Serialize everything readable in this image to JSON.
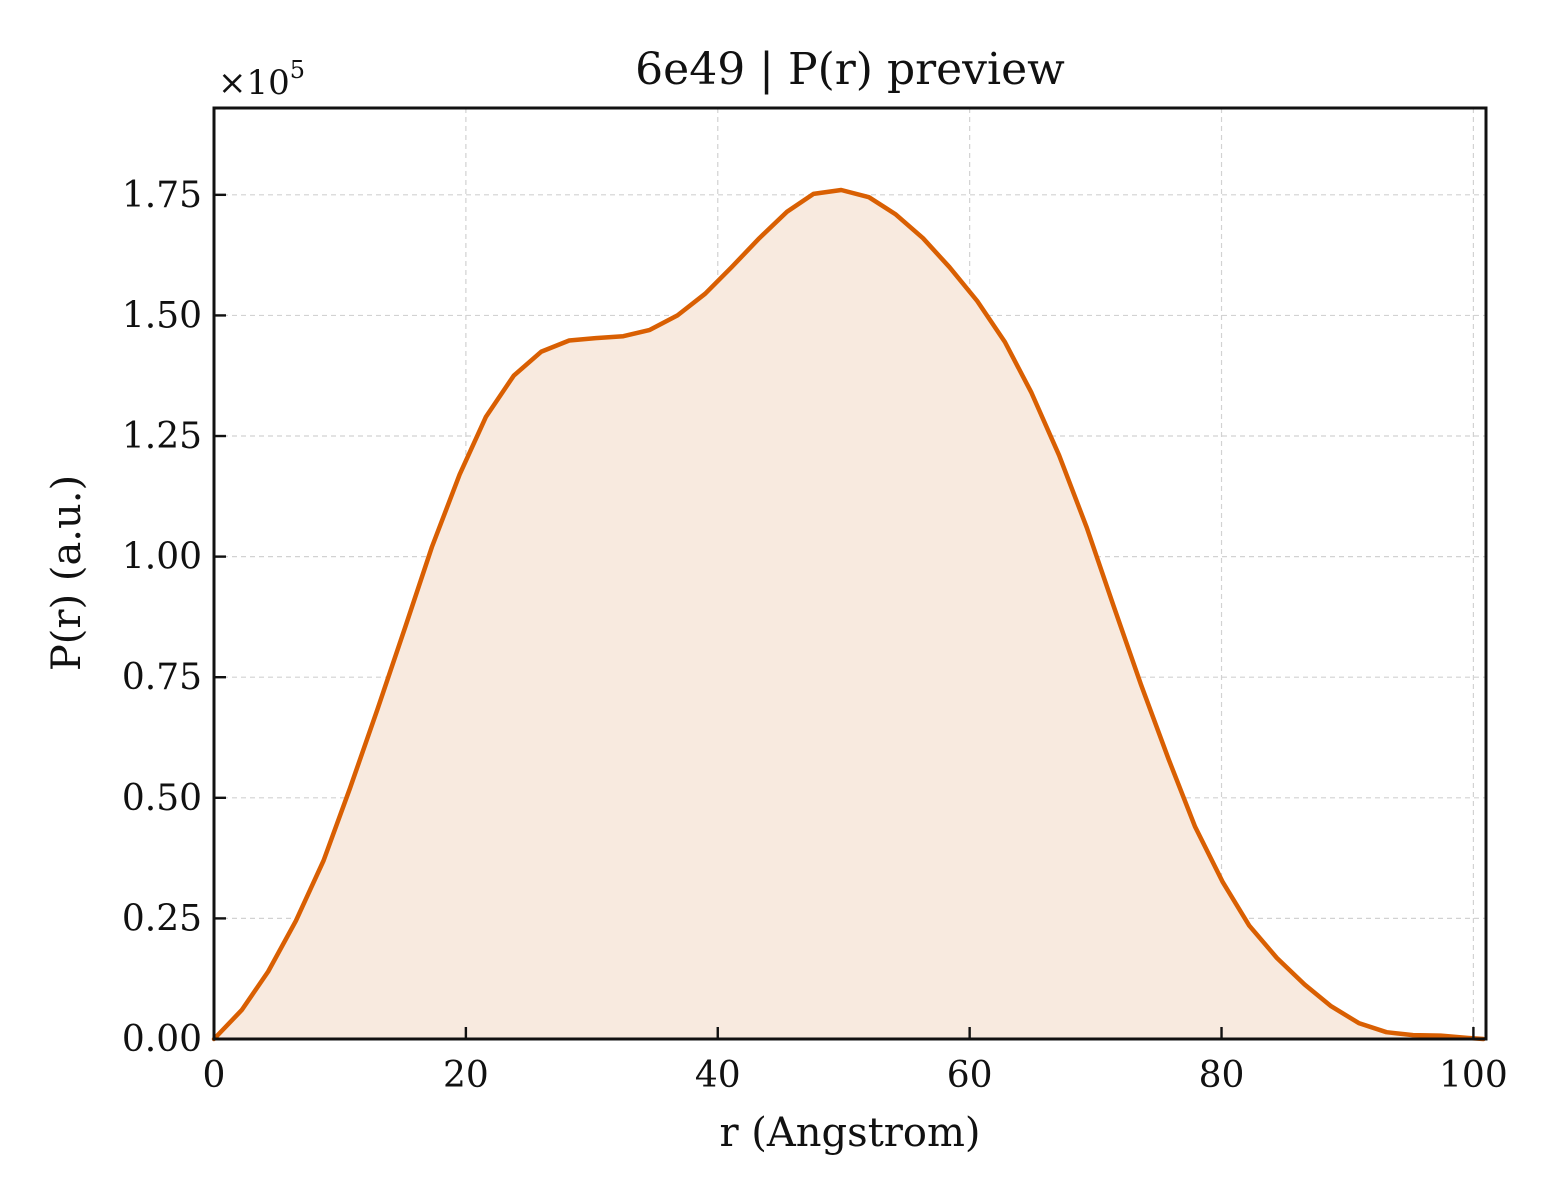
{
  "chart_data": {
    "type": "area",
    "title": "6e49 | P(r) preview",
    "xlabel": "r (Angstrom)",
    "ylabel": "P(r) (a.u.)",
    "y_multiplier": "×10",
    "y_multiplier_exponent": "5",
    "xlim": [
      0,
      101
    ],
    "ylim": [
      0,
      1.93
    ],
    "x_ticks": [
      0,
      20,
      40,
      60,
      80,
      100
    ],
    "x_tick_labels": [
      "0",
      "20",
      "40",
      "60",
      "80",
      "100"
    ],
    "y_ticks": [
      0,
      0.25,
      0.5,
      0.75,
      1.0,
      1.25,
      1.5,
      1.75
    ],
    "y_tick_labels": [
      "0.00",
      "0.25",
      "0.50",
      "0.75",
      "1.00",
      "1.25",
      "1.50",
      "1.75"
    ],
    "grid": true,
    "line_color": "#d95f02",
    "fill_color": "#f8eadf",
    "series": [
      {
        "x": [
          0,
          2.2,
          4.3,
          6.5,
          8.7,
          10.8,
          13.0,
          15.2,
          17.3,
          19.5,
          21.6,
          23.8,
          26.0,
          28.2,
          30.3,
          32.5,
          34.6,
          36.8,
          39.0,
          41.1,
          43.3,
          45.5,
          47.6,
          49.8,
          52.0,
          54.1,
          56.3,
          58.4,
          60.6,
          62.8,
          64.9,
          67.1,
          69.3,
          71.4,
          73.6,
          75.8,
          77.9,
          80.1,
          82.2,
          84.4,
          86.6,
          88.7,
          90.9,
          93.1,
          95.2,
          97.4,
          99.6,
          100.8
        ],
        "y": [
          0.0,
          0.06,
          0.14,
          0.245,
          0.37,
          0.52,
          0.685,
          0.855,
          1.02,
          1.17,
          1.29,
          1.375,
          1.425,
          1.448,
          1.453,
          1.457,
          1.47,
          1.5,
          1.545,
          1.6,
          1.66,
          1.715,
          1.752,
          1.76,
          1.745,
          1.71,
          1.66,
          1.6,
          1.53,
          1.445,
          1.34,
          1.21,
          1.06,
          0.9,
          0.735,
          0.58,
          0.44,
          0.325,
          0.235,
          0.168,
          0.113,
          0.068,
          0.033,
          0.014,
          0.008,
          0.007,
          0.002,
          0.0
        ]
      }
    ]
  }
}
